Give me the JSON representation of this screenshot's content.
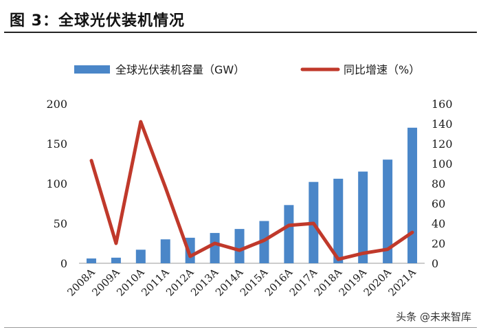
{
  "header": {
    "title": "图 3：全球光伏装机情况"
  },
  "watermark": {
    "text": "头条 @未来智库"
  },
  "colors": {
    "bar": "#4a86c8",
    "line": "#c0392b",
    "rule": "#222222"
  },
  "chart_data": {
    "type": "bar",
    "title": "",
    "categories": [
      "2008A",
      "2009A",
      "2010A",
      "2011A",
      "2012A",
      "2013A",
      "2014A",
      "2015A",
      "2016A",
      "2017A",
      "2018A",
      "2019A",
      "2020A",
      "2021A"
    ],
    "series": [
      {
        "name": "全球光伏装机容量（GW）",
        "type": "bar",
        "axis": "left",
        "values": [
          6,
          7,
          17,
          30,
          32,
          38,
          43,
          53,
          73,
          102,
          106,
          115,
          130,
          170
        ]
      },
      {
        "name": "同比增速（%）",
        "type": "line",
        "axis": "right",
        "values": [
          103,
          20,
          142,
          76,
          7,
          20,
          13,
          23,
          38,
          40,
          4,
          10,
          14,
          31
        ]
      }
    ],
    "y_left": {
      "ylim": [
        0,
        200
      ],
      "ticks": [
        "0",
        "50",
        "100",
        "150",
        "200"
      ]
    },
    "y_right": {
      "ylim": [
        0,
        160
      ],
      "ticks": [
        "0",
        "20",
        "40",
        "60",
        "80",
        "100",
        "120",
        "140",
        "160"
      ]
    },
    "legend": {
      "position": "top"
    },
    "grid": false
  }
}
